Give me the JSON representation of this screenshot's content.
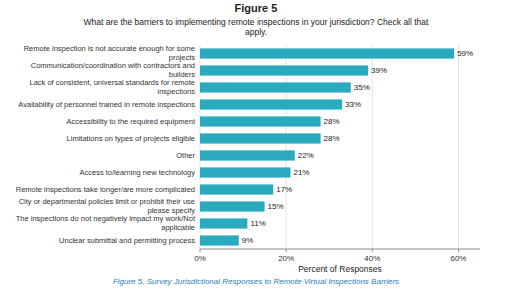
{
  "chart_data": {
    "type": "bar",
    "orientation": "horizontal",
    "title": "Figure 5",
    "subtitle": "What are the barriers to implementing remote inspections in your jurisdiction? Check all that\napply.",
    "caption": "Figure 5, Survey Jurisdictional Responses to Remote Virtual Inspections Barriers",
    "x_label": "Percent of Responses",
    "categories": [
      "Remote inspection is not accurate enough for some projects",
      "Communication/coordination with contractors and builders",
      "Lack of consistent, universal standards for remote inspections",
      "Availability of personnel trained in remote inspections",
      "Accessibility to the required equipment",
      "Limitations on types of projects eligible",
      "Other",
      "Access to/learning new technology",
      "Remote inspections take longer/are more complicated",
      "City or departmental policies limit or prohibit their use please specify",
      "The inspections do not negatively impact my work/Not applicable",
      "Unclear submittal and permitting process"
    ],
    "values": [
      59,
      39,
      35,
      33,
      28,
      28,
      22,
      21,
      17,
      15,
      11,
      9
    ],
    "value_labels": [
      "59%",
      "39%",
      "35%",
      "33%",
      "28%",
      "28%",
      "22%",
      "21%",
      "17%",
      "15%",
      "11%",
      "9%"
    ],
    "data_labels": true,
    "color": "#29AABE",
    "xlim": [
      0,
      65
    ],
    "xticks": [
      {
        "value": 0,
        "label": "0%"
      },
      {
        "value": 20,
        "label": "20%"
      },
      {
        "value": 40,
        "label": "40%"
      },
      {
        "value": 60,
        "label": "60%"
      }
    ],
    "grid": true
  }
}
